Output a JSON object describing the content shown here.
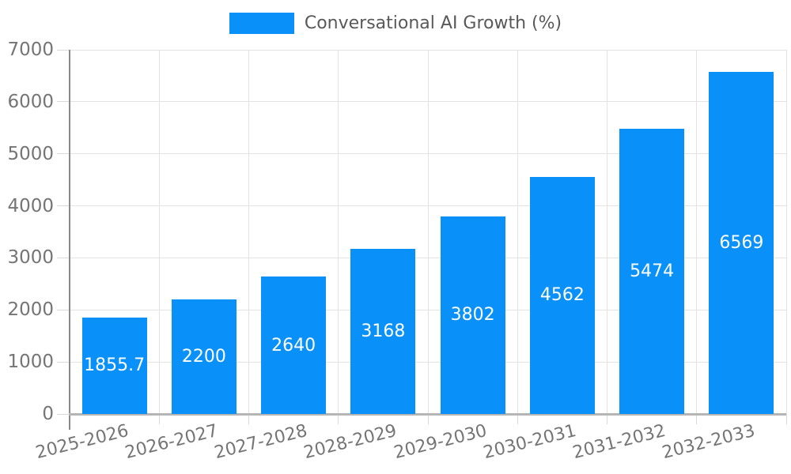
{
  "chart_data": {
    "type": "bar",
    "title": "Conversational AI Growth (%)",
    "xlabel": "",
    "ylabel": "",
    "categories": [
      "2025-2026",
      "2026-2027",
      "2027-2028",
      "2028-2029",
      "2029-2030",
      "2030-2031",
      "2031-2032",
      "2032-2033"
    ],
    "values": [
      1855.7,
      2200,
      2640,
      3168,
      3802,
      4562,
      5474,
      6569
    ],
    "bar_labels": [
      "1855.7",
      "2200",
      "2640",
      "3168",
      "3802",
      "4562",
      "5474",
      "6569"
    ],
    "ylim": [
      0,
      7000
    ],
    "yticks": [
      0,
      1000,
      2000,
      3000,
      4000,
      5000,
      6000,
      7000
    ],
    "grid": true,
    "legend_position": "top-center",
    "x_label_rotation_deg": -14,
    "colors": {
      "bar": "#0990f9",
      "bar_label": "#ffffff",
      "tick_label": "#757575",
      "legend_text": "#595959",
      "gridline": "#e3e3e3",
      "tick_mark": "#d9d9d9",
      "y_axis_line": "#8a8a8a",
      "x_axis_line": "#b5b5b5",
      "background": "#ffffff"
    }
  }
}
